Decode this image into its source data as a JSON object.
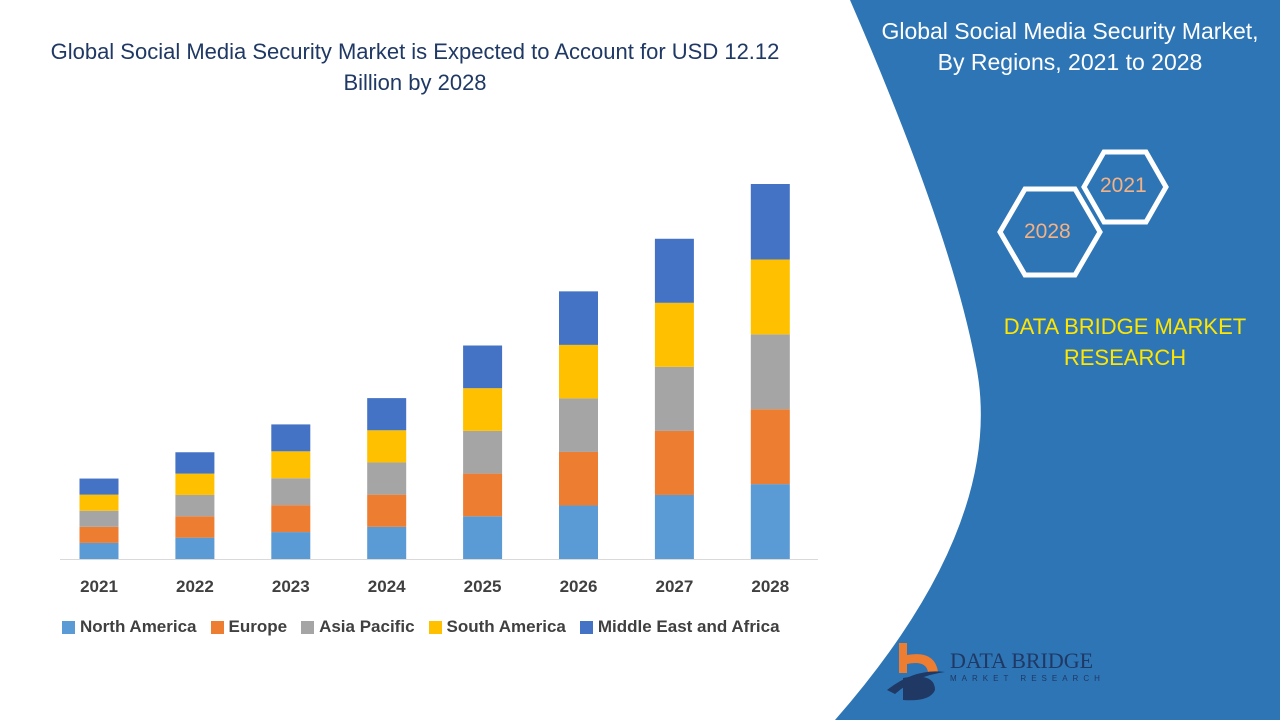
{
  "title": "Global Social Media Security Market is Expected to Account for USD 12.12 Billion by 2028",
  "side_panel": {
    "title": "Global Social Media Security Market, By Regions, 2021 to 2028",
    "hex_years": [
      "2021",
      "2028"
    ],
    "brand": "DATA BRIDGE MARKET RESEARCH",
    "logo_text": "DATA BRIDGE",
    "logo_subtext": "MARKET RESEARCH",
    "color": "#2E75B6"
  },
  "chart_data": {
    "type": "bar",
    "stacked": true,
    "title": "Global Social Media Security Market is Expected to Account for USD 12.12 Billion by 2028",
    "xlabel": "",
    "ylabel": "",
    "ylim": [
      0,
      12.12
    ],
    "grid": false,
    "legend_position": "bottom",
    "categories": [
      "2021",
      "2022",
      "2023",
      "2024",
      "2025",
      "2026",
      "2027",
      "2028"
    ],
    "series": [
      {
        "name": "North America",
        "color": "#5B9BD5",
        "values": [
          0.52,
          0.69,
          0.87,
          1.04,
          1.38,
          1.73,
          2.07,
          2.42
        ]
      },
      {
        "name": "Europe",
        "color": "#ED7D31",
        "values": [
          0.52,
          0.69,
          0.87,
          1.04,
          1.38,
          1.73,
          2.07,
          2.42
        ]
      },
      {
        "name": "Asia Pacific",
        "color": "#A5A5A5",
        "values": [
          0.52,
          0.69,
          0.87,
          1.04,
          1.38,
          1.73,
          2.07,
          2.42
        ]
      },
      {
        "name": "South America",
        "color": "#FFC000",
        "values": [
          0.52,
          0.69,
          0.87,
          1.04,
          1.38,
          1.73,
          2.07,
          2.42
        ]
      },
      {
        "name": "Middle East and Africa",
        "color": "#4472C4",
        "values": [
          0.52,
          0.69,
          0.87,
          1.04,
          1.38,
          1.73,
          2.07,
          2.44
        ]
      }
    ]
  }
}
